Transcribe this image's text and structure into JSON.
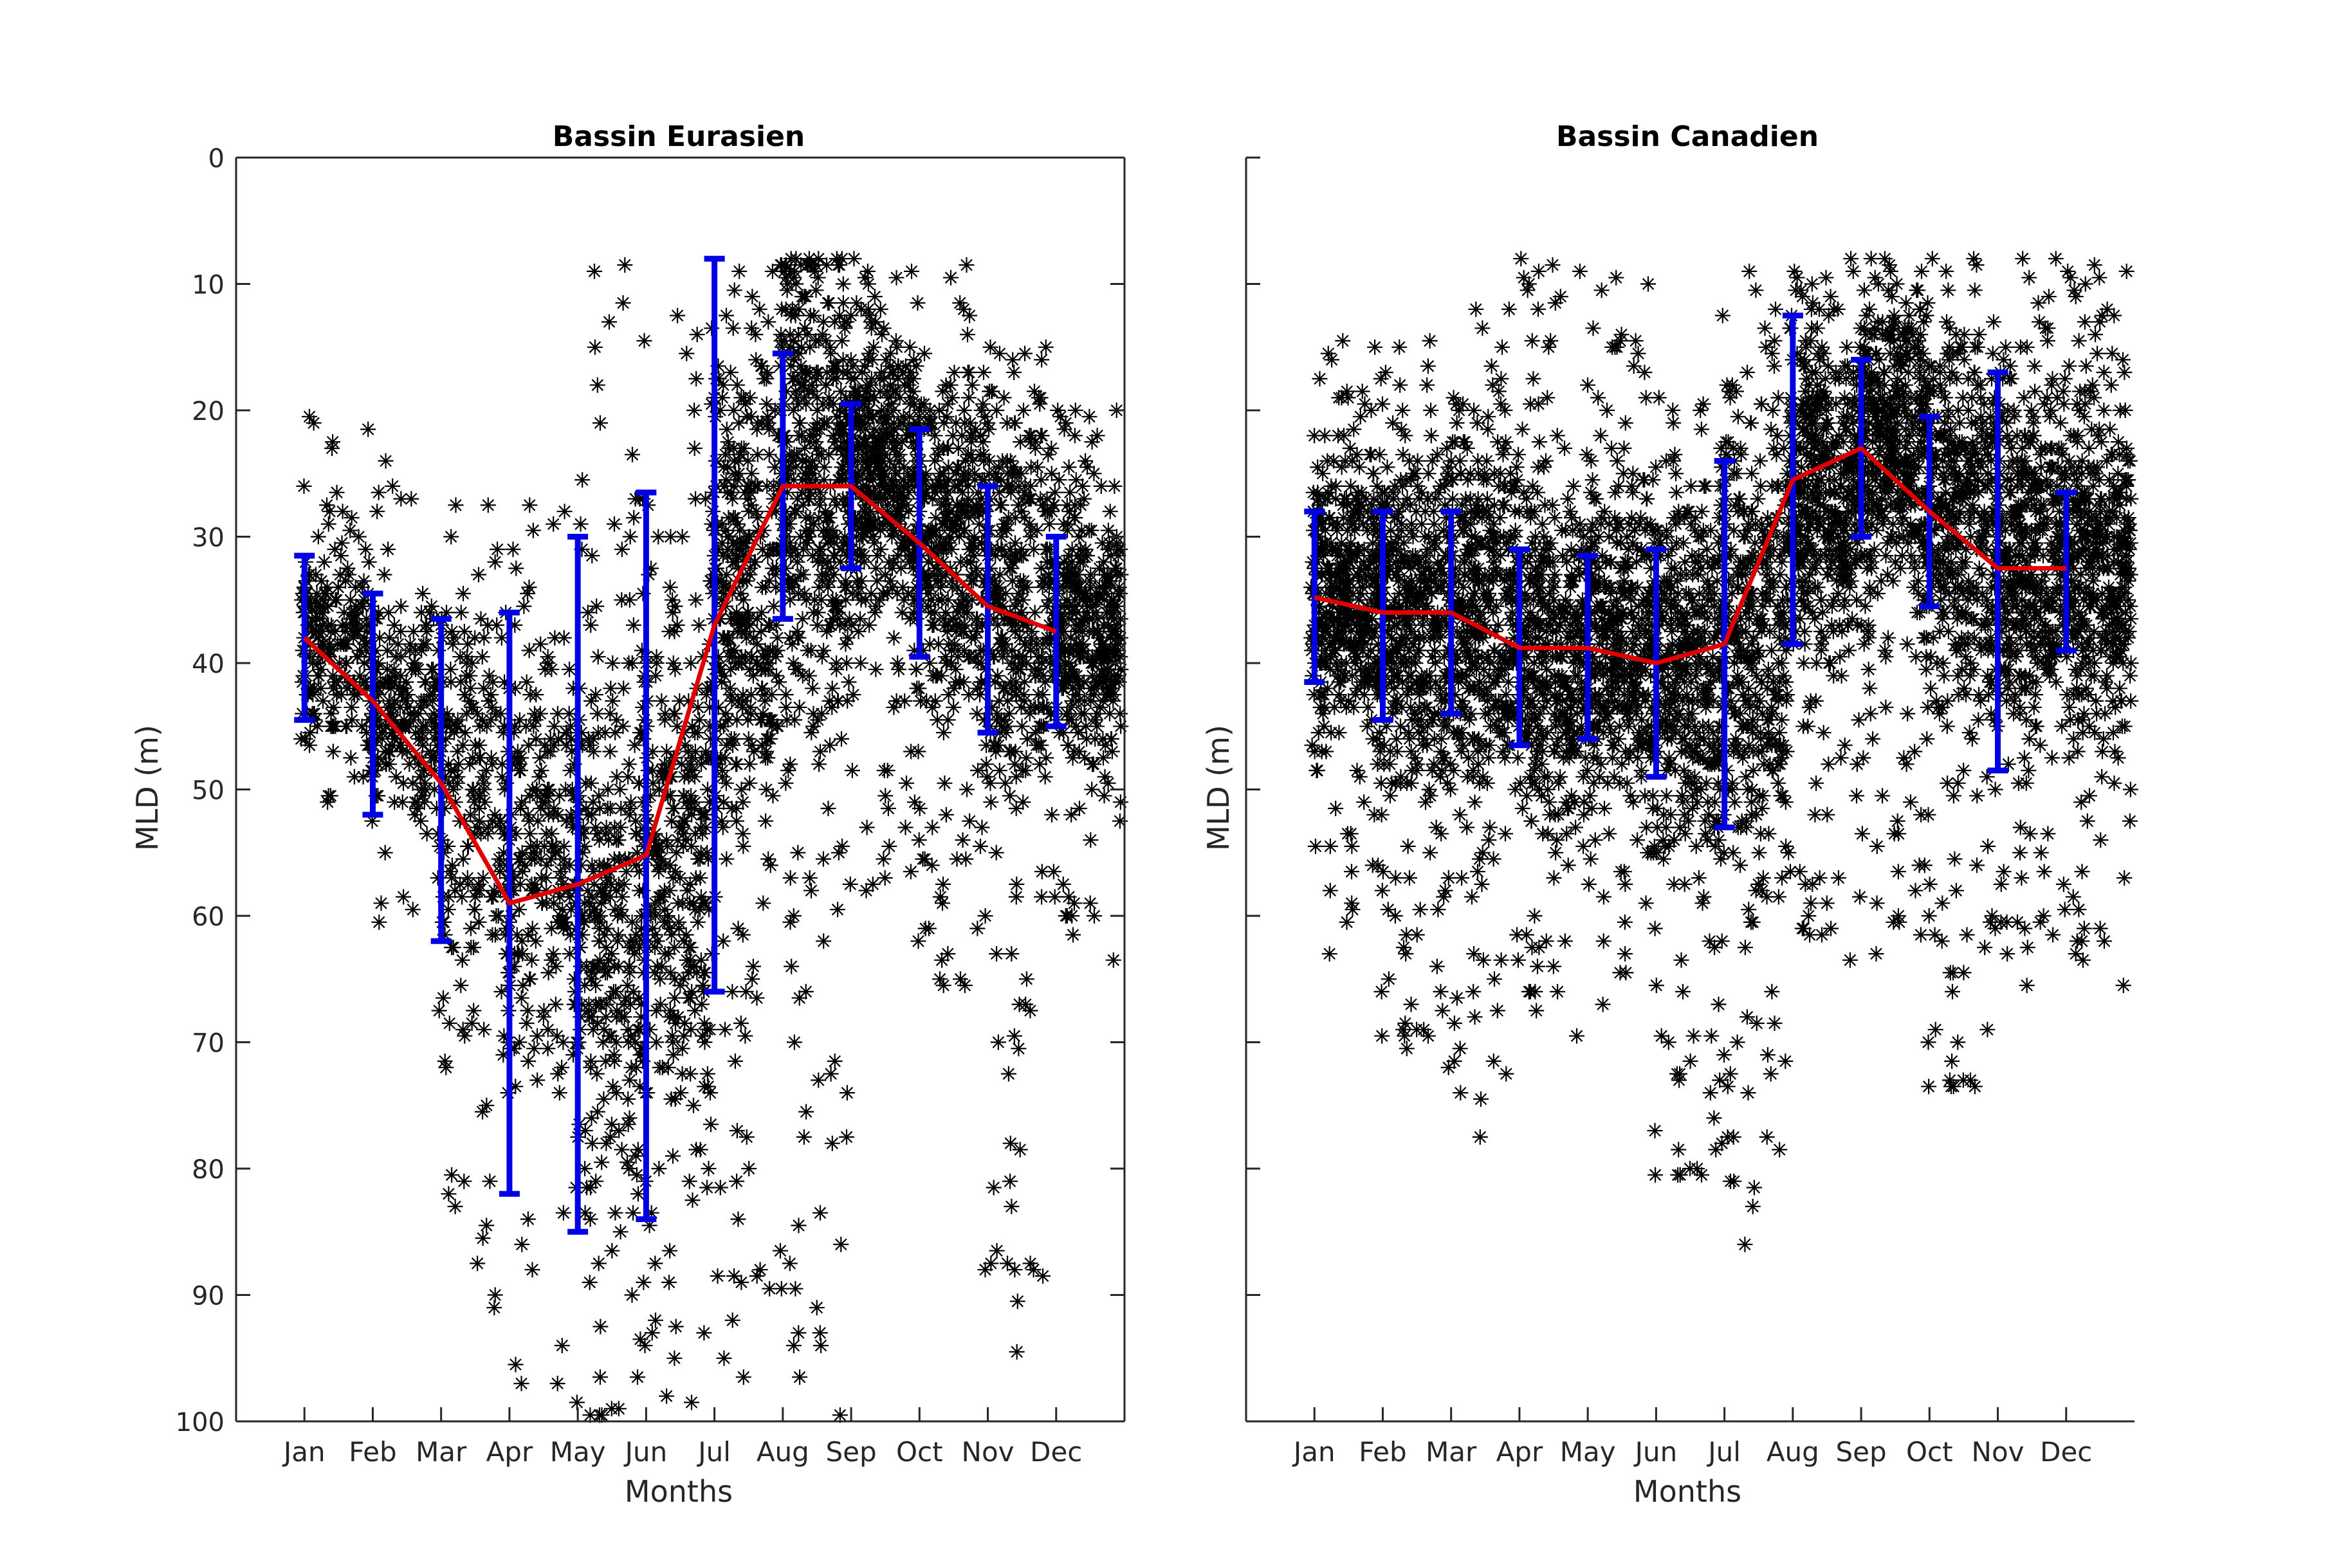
{
  "chart_data": [
    {
      "type": "line",
      "title": "Bassin Eurasien",
      "xlabel": "Months",
      "ylabel": "MLD (m)",
      "categories": [
        "Jan",
        "Feb",
        "Mar",
        "Apr",
        "May",
        "Jun",
        "Jul",
        "Aug",
        "Sep",
        "Oct",
        "Nov",
        "Dec"
      ],
      "xlim": [
        0,
        13
      ],
      "ylim": [
        0,
        100
      ],
      "y_reversed": true,
      "yticks": [
        0,
        10,
        20,
        30,
        40,
        50,
        60,
        70,
        80,
        90,
        100
      ],
      "grid": false,
      "series": [
        {
          "values": [
            38,
            43,
            49.5,
            59,
            57.5,
            55.2,
            37,
            26,
            26,
            30.5,
            35.5,
            37.5
          ],
          "color": "#e00000"
        }
      ],
      "error_bars": {
        "color": "#0000e6",
        "lower": [
          31.5,
          34.5,
          36.5,
          36,
          30,
          26.5,
          8,
          15.5,
          19.5,
          21.5,
          26,
          30
        ],
        "upper": [
          44.5,
          52,
          62,
          82,
          85,
          84,
          66,
          36.5,
          32.5,
          39.5,
          45.5,
          45
        ]
      },
      "scatter": {
        "marker": "*",
        "color": "#000000",
        "clusters": [
          {
            "x": 1,
            "ymin": 20,
            "ymax": 52,
            "center": 38,
            "density": 0.8
          },
          {
            "x": 2,
            "ymin": 24,
            "ymax": 61,
            "center": 43,
            "density": 0.8
          },
          {
            "x": 3,
            "ymin": 23,
            "ymax": 93,
            "center": 50,
            "density": 0.8
          },
          {
            "x": 4,
            "ymin": 26,
            "ymax": 100,
            "center": 55,
            "density": 0.9
          },
          {
            "x": 5,
            "ymin": 8,
            "ymax": 100,
            "center": 60,
            "density": 1.2
          },
          {
            "x": 6,
            "ymin": 10,
            "ymax": 100,
            "center": 55,
            "density": 1.2
          },
          {
            "x": 7,
            "ymin": 8,
            "ymax": 100,
            "center": 35,
            "density": 1.4
          },
          {
            "x": 8,
            "ymin": 8,
            "ymax": 100,
            "center": 25,
            "density": 1.6
          },
          {
            "x": 9,
            "ymin": 8,
            "ymax": 58,
            "center": 25,
            "density": 1.6
          },
          {
            "x": 10,
            "ymin": 8,
            "ymax": 66,
            "center": 30,
            "density": 1.4
          },
          {
            "x": 11,
            "ymin": 15,
            "ymax": 98,
            "center": 35,
            "density": 1.3
          },
          {
            "x": 12,
            "ymin": 19,
            "ymax": 63,
            "center": 37,
            "density": 1.4
          }
        ]
      }
    },
    {
      "type": "line",
      "title": "Bassin Canadien",
      "xlabel": "Months",
      "ylabel": "MLD (m)",
      "categories": [
        "Jan",
        "Feb",
        "Mar",
        "Apr",
        "May",
        "Jun",
        "Jul",
        "Aug",
        "Sep",
        "Oct",
        "Nov",
        "Dec"
      ],
      "xlim": [
        0,
        13
      ],
      "ylim": [
        0,
        100
      ],
      "y_reversed": true,
      "yticks": [
        0,
        10,
        20,
        30,
        40,
        50,
        60,
        70,
        80,
        90,
        100
      ],
      "grid": false,
      "series": [
        {
          "values": [
            34.8,
            36,
            36,
            38.8,
            38.8,
            40,
            38.5,
            25.5,
            23,
            28,
            32.5,
            32.5
          ],
          "color": "#e00000"
        }
      ],
      "error_bars": {
        "color": "#0000e6",
        "lower": [
          28,
          28,
          28,
          31,
          31.5,
          31,
          24,
          12.5,
          16,
          20.5,
          17,
          26.5
        ],
        "upper": [
          41.5,
          44.5,
          44,
          46.5,
          46,
          49,
          53,
          38.5,
          30,
          35.5,
          48.5,
          39
        ]
      },
      "scatter": {
        "marker": "*",
        "color": "#000000",
        "clusters": [
          {
            "x": 1,
            "ymin": 14,
            "ymax": 63,
            "center": 35,
            "density": 1.6
          },
          {
            "x": 2,
            "ymin": 14,
            "ymax": 70,
            "center": 36,
            "density": 1.6
          },
          {
            "x": 3,
            "ymin": 12,
            "ymax": 80,
            "center": 36,
            "density": 1.5
          },
          {
            "x": 4,
            "ymin": 7,
            "ymax": 70,
            "center": 39,
            "density": 1.5
          },
          {
            "x": 5,
            "ymin": 9,
            "ymax": 68,
            "center": 39,
            "density": 1.5
          },
          {
            "x": 6,
            "ymin": 19,
            "ymax": 81,
            "center": 40,
            "density": 1.5
          },
          {
            "x": 7,
            "ymin": 8,
            "ymax": 88,
            "center": 38,
            "density": 1.5
          },
          {
            "x": 8,
            "ymin": 8,
            "ymax": 64,
            "center": 26,
            "density": 1.7
          },
          {
            "x": 9,
            "ymin": 8,
            "ymax": 64,
            "center": 23,
            "density": 1.7
          },
          {
            "x": 10,
            "ymin": 8,
            "ymax": 74,
            "center": 28,
            "density": 1.6
          },
          {
            "x": 11,
            "ymin": 8,
            "ymax": 68,
            "center": 32,
            "density": 1.6
          },
          {
            "x": 12,
            "ymin": 8,
            "ymax": 66,
            "center": 32,
            "density": 1.6
          }
        ]
      }
    }
  ]
}
